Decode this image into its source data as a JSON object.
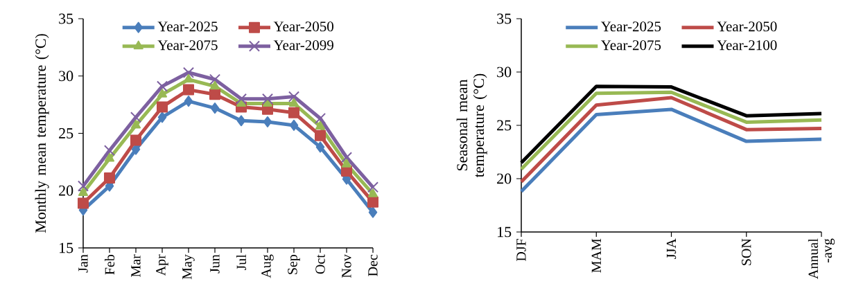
{
  "chart_data": [
    {
      "type": "line",
      "ylabel": "Monthly mean temperature (°C)",
      "categories": [
        "Jan",
        "Feb",
        "Mar",
        "Apr",
        "May",
        "Jun",
        "Jul",
        "Aug",
        "Sep",
        "Oct",
        "Nov",
        "Dec"
      ],
      "ylim": [
        15,
        35
      ],
      "yticks": [
        15,
        20,
        25,
        30,
        35
      ],
      "legend": "top",
      "series": [
        {
          "name": "Year-2025",
          "color": "#4a7ebb",
          "marker": "diamond",
          "values": [
            18.3,
            20.4,
            23.6,
            26.4,
            27.8,
            27.2,
            26.1,
            26.0,
            25.7,
            23.8,
            21.0,
            18.1
          ]
        },
        {
          "name": "Year-2050",
          "color": "#be4b48",
          "marker": "square",
          "values": [
            18.9,
            21.1,
            24.4,
            27.3,
            28.8,
            28.4,
            27.3,
            27.1,
            26.8,
            24.8,
            21.7,
            19.0
          ]
        },
        {
          "name": "Year-2075",
          "color": "#98b954",
          "marker": "triangle",
          "values": [
            19.8,
            22.8,
            25.7,
            28.4,
            29.7,
            29.1,
            27.6,
            27.6,
            27.6,
            25.6,
            22.3,
            19.7
          ]
        },
        {
          "name": "Year-2099",
          "color": "#7d60a0",
          "marker": "cross",
          "values": [
            20.4,
            23.5,
            26.4,
            29.1,
            30.3,
            29.7,
            28.0,
            28.0,
            28.2,
            26.3,
            22.9,
            20.3
          ]
        }
      ]
    },
    {
      "type": "line",
      "ylabel": "Seasonal mean temperature (°C)",
      "categories": [
        "DJF",
        "MAM",
        "JJA",
        "SON",
        "Annual -avg"
      ],
      "ylim": [
        15,
        35
      ],
      "yticks": [
        15,
        20,
        25,
        30,
        35
      ],
      "legend": "top",
      "series": [
        {
          "name": "Year-2025",
          "color": "#4a7ebb",
          "values": [
            18.8,
            26.0,
            26.5,
            23.5,
            23.7
          ]
        },
        {
          "name": "Year-2050",
          "color": "#be4b48",
          "values": [
            19.7,
            26.9,
            27.6,
            24.6,
            24.7
          ]
        },
        {
          "name": "Year-2075",
          "color": "#98b954",
          "values": [
            20.9,
            28.0,
            28.1,
            25.3,
            25.5
          ]
        },
        {
          "name": "Year-2100",
          "color": "#000000",
          "values": [
            21.5,
            28.65,
            28.6,
            25.9,
            26.1
          ]
        }
      ]
    }
  ]
}
